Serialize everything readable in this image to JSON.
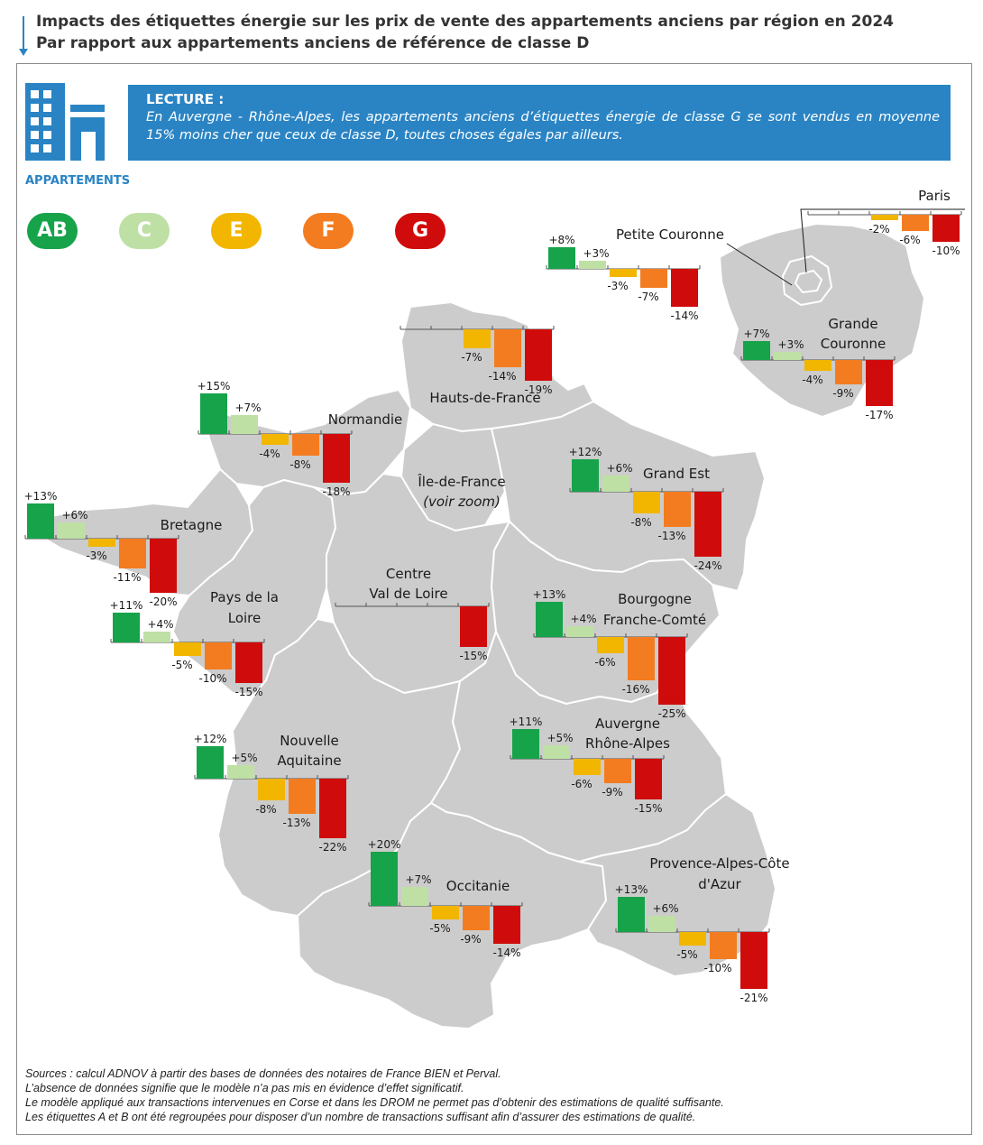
{
  "title": {
    "line1": "Impacts des étiquettes énergie sur les prix de vente des appartements anciens par région en 2024",
    "line2": "Par rapport aux appartements anciens de référence de classe D"
  },
  "lecture": {
    "heading": "LECTURE :",
    "body": "En Auvergne - Rhône-Alpes, les appartements anciens d’étiquettes énergie de classe G se sont vendus en moyenne 15% moins cher que ceux de classe D, toutes choses égales par ailleurs."
  },
  "subheading": "APPARTEMENTS",
  "icon": "building-icon",
  "legend": [
    {
      "label": "AB",
      "color": "#16a34a"
    },
    {
      "label": "C",
      "color": "#bfe0a5"
    },
    {
      "label": "E",
      "color": "#f2b600"
    },
    {
      "label": "F",
      "color": "#f47c20"
    },
    {
      "label": "G",
      "color": "#d00b0b"
    }
  ],
  "colors": {
    "AB": "#16a34a",
    "C": "#bfe0a5",
    "E": "#f2b600",
    "F": "#f47c20",
    "G": "#d00b0b",
    "map": "#cccccc",
    "border": "#ffffff"
  },
  "chart_data": {
    "type": "bar",
    "categories": [
      "AB",
      "C",
      "E",
      "F",
      "G"
    ],
    "unit": "%",
    "regions": [
      {
        "name": "Paris",
        "values": [
          null,
          null,
          -2,
          -6,
          -10
        ]
      },
      {
        "name": "Petite Couronne",
        "values": [
          8,
          3,
          -3,
          -7,
          -14
        ]
      },
      {
        "name": "Grande Couronne",
        "values": [
          7,
          3,
          -4,
          -9,
          -17
        ]
      },
      {
        "name": "Hauts-de-France",
        "values": [
          null,
          null,
          -7,
          -14,
          -19
        ]
      },
      {
        "name": "Normandie",
        "values": [
          15,
          7,
          -4,
          -8,
          -18
        ]
      },
      {
        "name": "Grand Est",
        "values": [
          12,
          6,
          -8,
          -13,
          -24
        ]
      },
      {
        "name": "Bretagne",
        "values": [
          13,
          6,
          -3,
          -11,
          -20
        ]
      },
      {
        "name": "Centre Val de Loire",
        "values": [
          null,
          null,
          null,
          null,
          -15
        ]
      },
      {
        "name": "Pays de la Loire",
        "values": [
          11,
          4,
          -5,
          -10,
          -15
        ]
      },
      {
        "name": "Bourgogne Franche-Comté",
        "values": [
          13,
          4,
          -6,
          -16,
          -25
        ]
      },
      {
        "name": "Auvergne Rhône-Alpes",
        "values": [
          11,
          5,
          -6,
          -9,
          -15
        ]
      },
      {
        "name": "Nouvelle Aquitaine",
        "values": [
          12,
          5,
          -8,
          -13,
          -22
        ]
      },
      {
        "name": "Occitanie",
        "values": [
          20,
          7,
          -5,
          -9,
          -14
        ]
      },
      {
        "name": "Provence-Alpes-Côte d'Azur",
        "values": [
          13,
          6,
          -5,
          -10,
          -21
        ]
      }
    ]
  },
  "map_labels": {
    "paris": "Paris",
    "petite_couronne": "Petite Couronne",
    "grande_couronne_1": "Grande",
    "grande_couronne_2": "Couronne",
    "hdf": "Hauts-de-France",
    "normandie": "Normandie",
    "grand_est": "Grand Est",
    "idf_1": "Île-de-France",
    "idf_2": "(voir zoom)",
    "bretagne": "Bretagne",
    "cvl_1": "Centre",
    "cvl_2": "Val de Loire",
    "pdl_1": "Pays de la",
    "pdl_2": "Loire",
    "bfc_1": "Bourgogne",
    "bfc_2": "Franche-Comté",
    "ara_1": "Auvergne",
    "ara_2": "Rhône-Alpes",
    "na_1": "Nouvelle",
    "na_2": "Aquitaine",
    "occitanie": "Occitanie",
    "paca_1": "Provence-Alpes-Côte",
    "paca_2": "d'Azur"
  },
  "sources": [
    "Sources : calcul ADNOV à partir des bases de données des notaires de France BIEN et Perval.",
    "L’absence de données signifie que le modèle n’a pas mis en évidence d’effet significatif.",
    "Le modèle appliqué aux transactions intervenues en Corse et dans les DROM ne permet pas d’obtenir des estimations de qualité suffisante.",
    "Les étiquettes A et B ont été regroupées pour disposer d’un nombre de transactions suffisant afin d’assurer des estimations de qualité."
  ]
}
